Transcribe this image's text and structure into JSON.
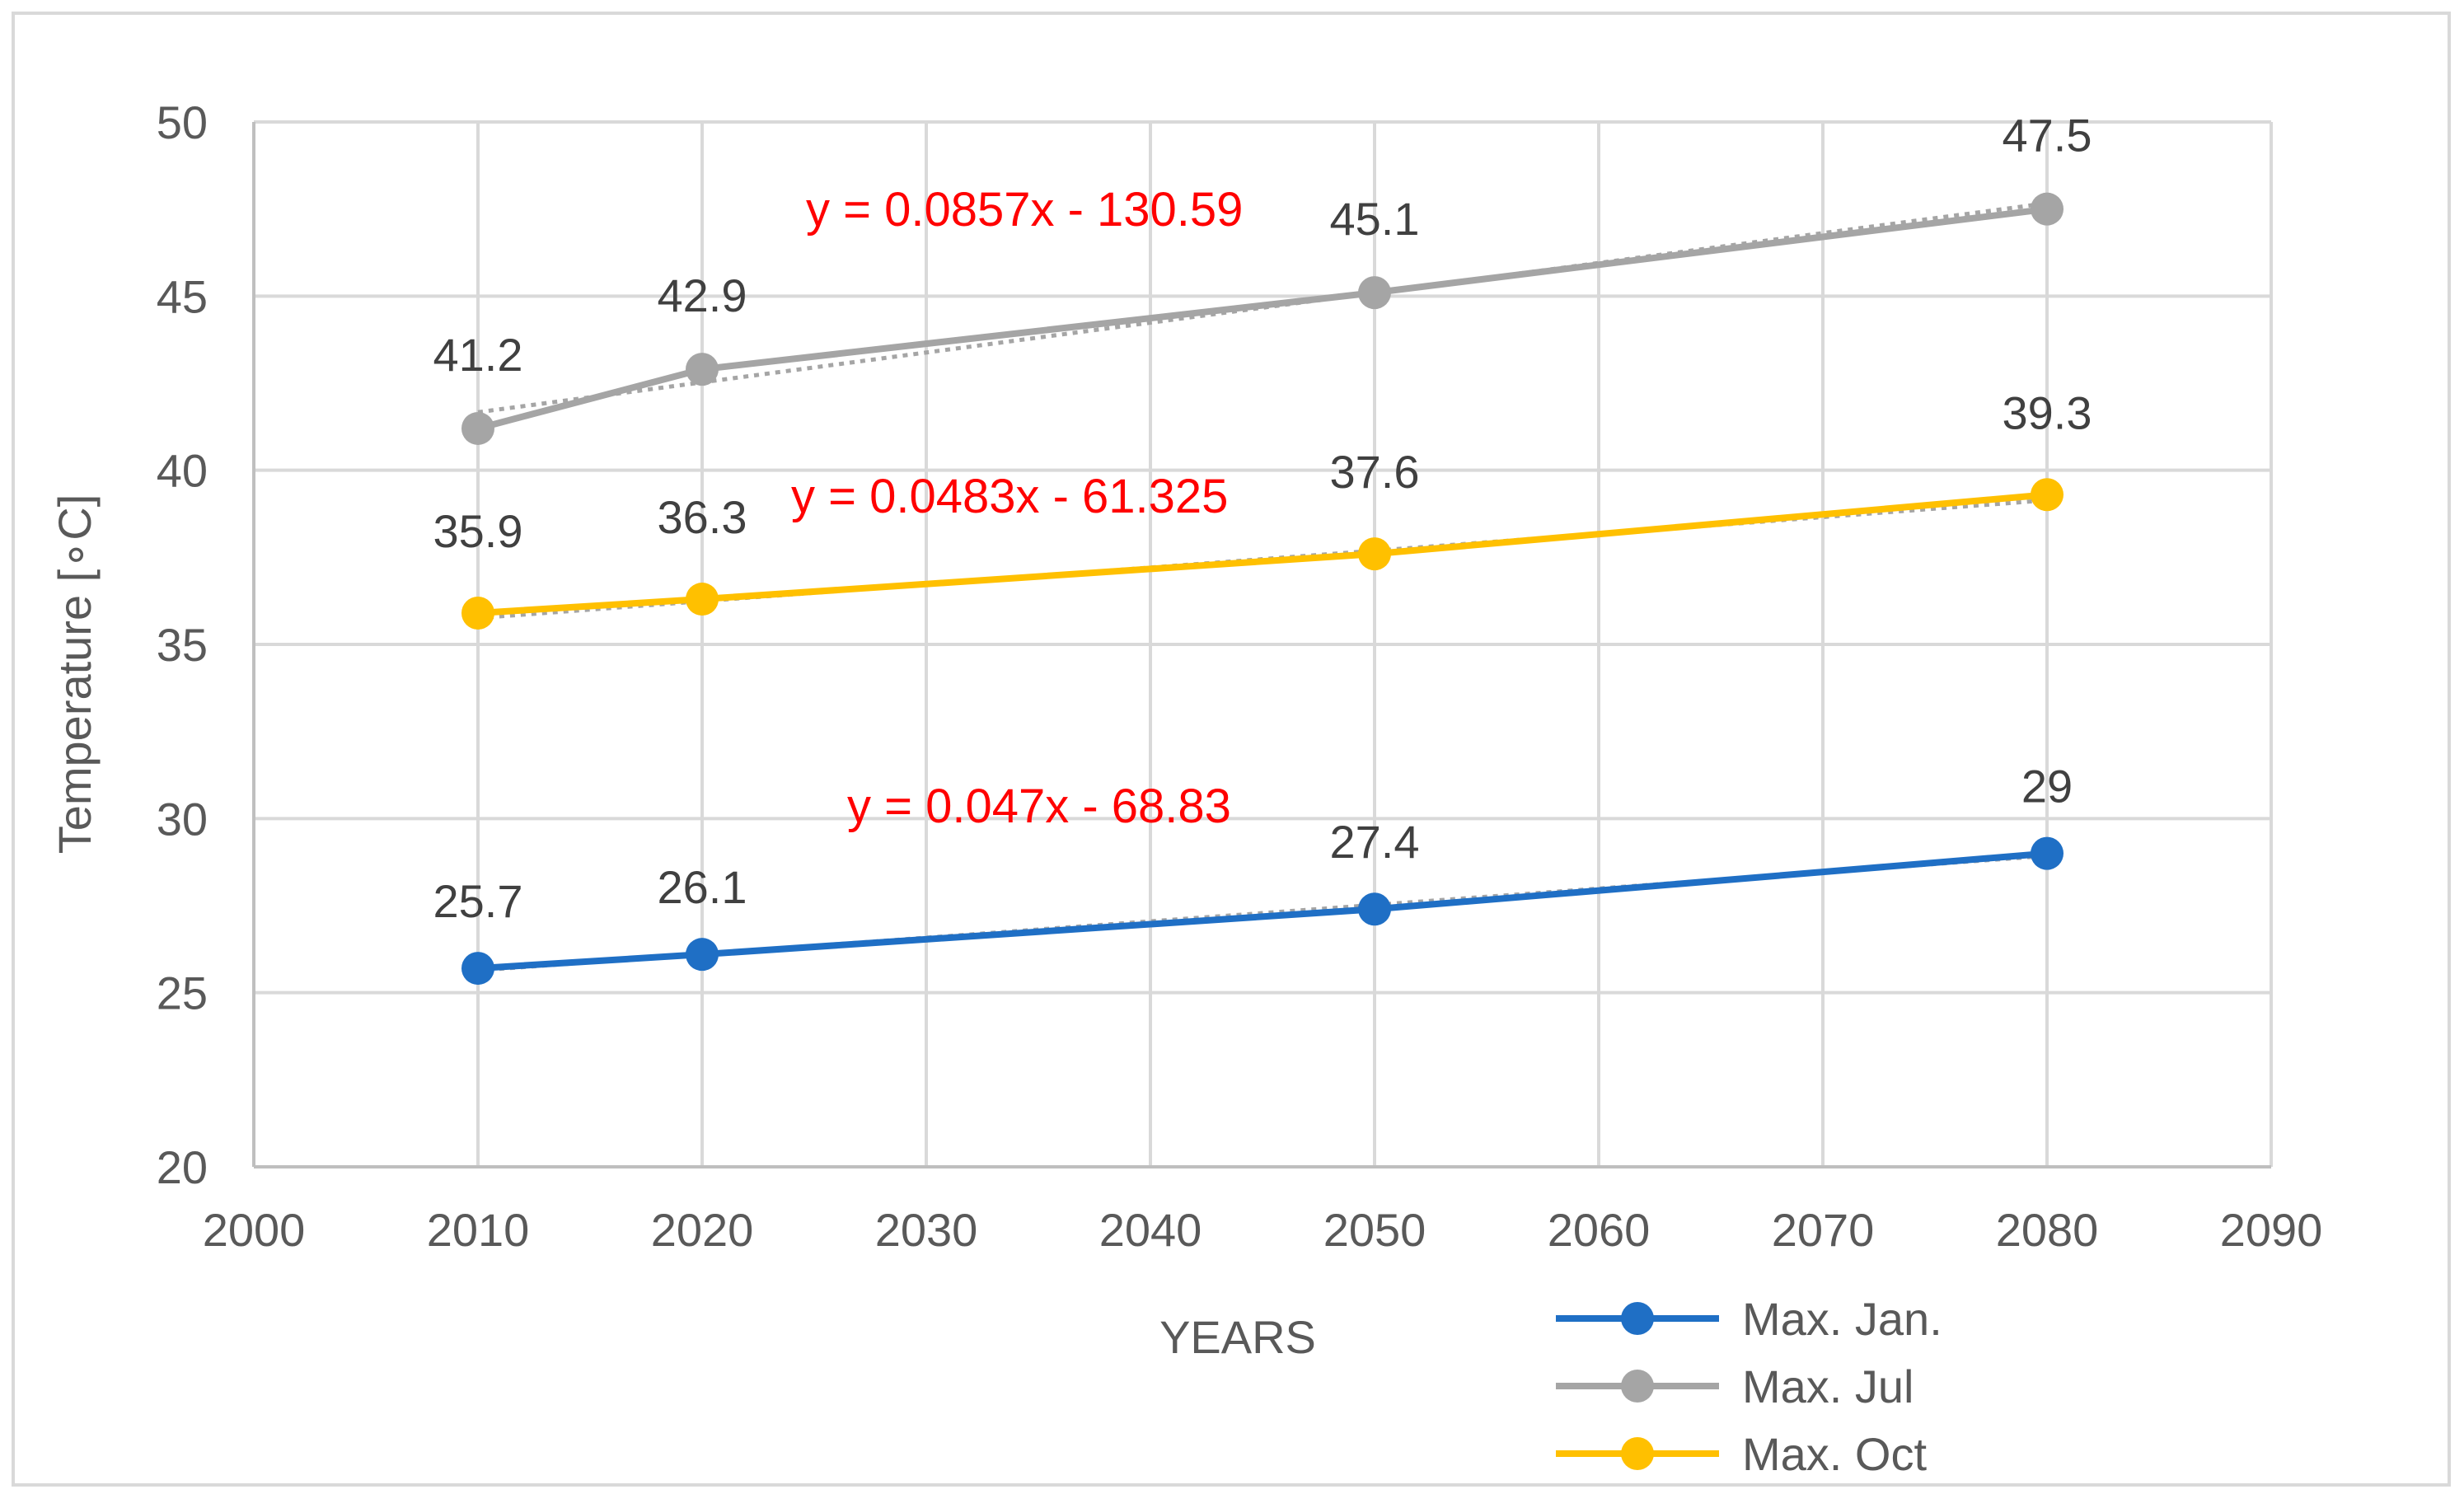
{
  "chart_data": {
    "type": "line",
    "title": "",
    "xlabel": "YEARS",
    "ylabel": "Temperature [∘C]",
    "xlim": [
      2000,
      2090
    ],
    "ylim": [
      20,
      50
    ],
    "x_ticks": [
      2000,
      2010,
      2020,
      2030,
      2040,
      2050,
      2060,
      2070,
      2080,
      2090
    ],
    "y_ticks": [
      20,
      25,
      30,
      35,
      40,
      45,
      50
    ],
    "grid": true,
    "legend_position": "bottom-right",
    "series": [
      {
        "name": "Max. Jan.",
        "color": "#1f6fc5",
        "x": [
          2010,
          2020,
          2050,
          2080
        ],
        "values": [
          25.7,
          26.1,
          27.4,
          29
        ],
        "labels": [
          "25.7",
          "26.1",
          "27.4",
          "29"
        ],
        "trendline": {
          "slope": 0.047,
          "intercept": -68.83,
          "equation": "y = 0.047x - 68.83"
        }
      },
      {
        "name": "Max. Jul",
        "color": "#a5a5a5",
        "x": [
          2010,
          2020,
          2050,
          2080
        ],
        "values": [
          41.2,
          42.9,
          45.1,
          47.5
        ],
        "labels": [
          "41.2",
          "42.9",
          "45.1",
          "47.5"
        ],
        "trendline": {
          "slope": 0.0857,
          "intercept": -130.59,
          "equation": "y = 0.0857x - 130.59"
        }
      },
      {
        "name": "Max. Oct",
        "color": "#ffc000",
        "x": [
          2010,
          2020,
          2050,
          2080
        ],
        "values": [
          35.9,
          36.3,
          37.6,
          39.3
        ],
        "labels": [
          "35.9",
          "36.3",
          "37.6",
          "39.3"
        ],
        "trendline": {
          "slope": 0.0483,
          "intercept": -61.325,
          "equation": "y = 0.0483x - 61.325"
        }
      }
    ],
    "equation_color": "#ff0000",
    "grid_color": "#d9d9d9",
    "trendline_color": "#a5a5a5"
  }
}
